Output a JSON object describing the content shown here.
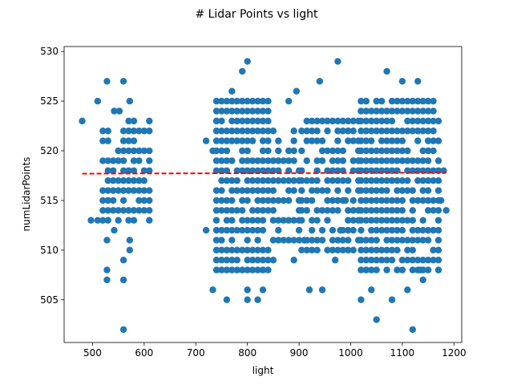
{
  "chart_data": {
    "type": "scatter",
    "title": "# Lidar Points vs light",
    "xlabel": "light",
    "ylabel": "numLidarPoints",
    "xlim": [
      445,
      1215
    ],
    "ylim": [
      500.7,
      530.5
    ],
    "xticks": [
      500,
      600,
      700,
      800,
      900,
      1000,
      1100,
      1200
    ],
    "yticks": [
      505,
      510,
      515,
      520,
      525,
      530
    ],
    "grid": false,
    "legend": "none",
    "colors": {
      "points": "#1f77b4",
      "trend": "#ff0000"
    },
    "trend_line": {
      "x": [
        480,
        1185
      ],
      "y": [
        517.7,
        517.8
      ],
      "style": "dashed"
    },
    "clusters": [
      {
        "x_start": 520,
        "x_end": 610,
        "x_step": 10,
        "y_min": 513,
        "y_max": 523,
        "density": 0.65,
        "seed": 11
      },
      {
        "x_start": 740,
        "x_end": 840,
        "x_step": 10,
        "y_min": 508,
        "y_max": 525,
        "density": 0.88,
        "seed": 23
      },
      {
        "x_start": 850,
        "x_end": 900,
        "x_step": 10,
        "y_min": 511,
        "y_max": 522,
        "density": 0.55,
        "seed": 37
      },
      {
        "x_start": 905,
        "x_end": 1015,
        "x_step": 10,
        "y_min": 510,
        "y_max": 523,
        "density": 0.72,
        "seed": 41
      },
      {
        "x_start": 1020,
        "x_end": 1170,
        "x_step": 10,
        "y_min": 508,
        "y_max": 525,
        "density": 0.86,
        "seed": 53
      }
    ],
    "points": [
      [
        480,
        523
      ],
      [
        497,
        513
      ],
      [
        510,
        525
      ],
      [
        510,
        513
      ],
      [
        528,
        527
      ],
      [
        528,
        511
      ],
      [
        528,
        508
      ],
      [
        528,
        507
      ],
      [
        542,
        524
      ],
      [
        542,
        512
      ],
      [
        552,
        524
      ],
      [
        560,
        527
      ],
      [
        560,
        502
      ],
      [
        560,
        509
      ],
      [
        560,
        507
      ],
      [
        572,
        525
      ],
      [
        572,
        511
      ],
      [
        572,
        510
      ],
      [
        590,
        514
      ],
      [
        720,
        521
      ],
      [
        720,
        512
      ],
      [
        733,
        520
      ],
      [
        733,
        506
      ],
      [
        740,
        524
      ],
      [
        760,
        505
      ],
      [
        770,
        526
      ],
      [
        790,
        528
      ],
      [
        800,
        529
      ],
      [
        800,
        506
      ],
      [
        800,
        505
      ],
      [
        820,
        505
      ],
      [
        830,
        506
      ],
      [
        850,
        509
      ],
      [
        860,
        511
      ],
      [
        880,
        525
      ],
      [
        890,
        509
      ],
      [
        895,
        526
      ],
      [
        905,
        513
      ],
      [
        910,
        511
      ],
      [
        920,
        506
      ],
      [
        940,
        527
      ],
      [
        945,
        506
      ],
      [
        970,
        509
      ],
      [
        975,
        529
      ],
      [
        980,
        512
      ],
      [
        990,
        515
      ],
      [
        1020,
        505
      ],
      [
        1030,
        508
      ],
      [
        1040,
        506
      ],
      [
        1050,
        503
      ],
      [
        1070,
        528
      ],
      [
        1080,
        505
      ],
      [
        1100,
        527
      ],
      [
        1110,
        506
      ],
      [
        1120,
        502
      ],
      [
        1130,
        527
      ],
      [
        1135,
        508
      ],
      [
        1140,
        507
      ],
      [
        1160,
        525
      ],
      [
        1170,
        516
      ],
      [
        1175,
        515
      ],
      [
        1180,
        518
      ],
      [
        1185,
        514
      ]
    ]
  }
}
